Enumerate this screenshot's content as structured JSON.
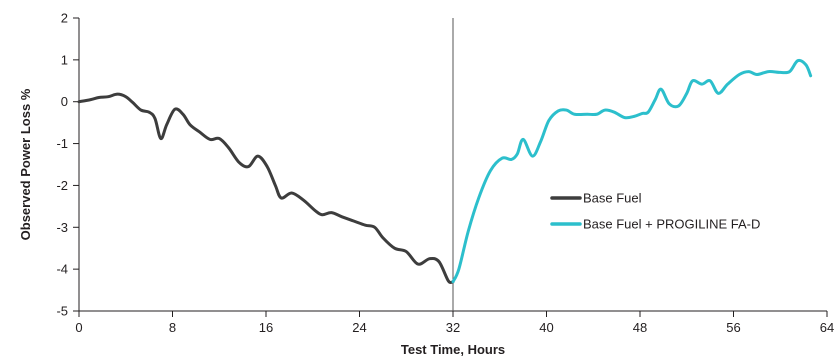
{
  "chart_data": {
    "type": "line",
    "xlabel": "Test Time, Hours",
    "ylabel": "Observed Power Loss %",
    "xlim": [
      0,
      64
    ],
    "ylim": [
      -5,
      2
    ],
    "xticks": [
      0,
      8,
      16,
      24,
      32,
      40,
      48,
      56,
      64
    ],
    "yticks": [
      -5,
      -4,
      -3,
      -2,
      -1,
      0,
      1,
      2
    ],
    "marker_x": 32,
    "grid": false,
    "legend_position": "right",
    "series": [
      {
        "name": "Base Fuel",
        "color": "#3d3d3d",
        "points": [
          [
            0,
            0
          ],
          [
            1,
            0.05
          ],
          [
            1.7,
            0.1
          ],
          [
            2.5,
            0.12
          ],
          [
            3.3,
            0.18
          ],
          [
            4,
            0.12
          ],
          [
            4.6,
            -0.02
          ],
          [
            5.3,
            -0.2
          ],
          [
            6,
            -0.25
          ],
          [
            6.5,
            -0.4
          ],
          [
            7,
            -0.88
          ],
          [
            7.5,
            -0.55
          ],
          [
            8.2,
            -0.18
          ],
          [
            8.9,
            -0.3
          ],
          [
            9.5,
            -0.55
          ],
          [
            10.3,
            -0.72
          ],
          [
            11.2,
            -0.9
          ],
          [
            12,
            -0.88
          ],
          [
            12.8,
            -1.1
          ],
          [
            13.7,
            -1.45
          ],
          [
            14.5,
            -1.55
          ],
          [
            15.3,
            -1.3
          ],
          [
            16.1,
            -1.55
          ],
          [
            16.8,
            -2.0
          ],
          [
            17.3,
            -2.3
          ],
          [
            18.2,
            -2.18
          ],
          [
            19.2,
            -2.35
          ],
          [
            20.2,
            -2.6
          ],
          [
            20.8,
            -2.7
          ],
          [
            21.6,
            -2.65
          ],
          [
            22.5,
            -2.75
          ],
          [
            23.5,
            -2.85
          ],
          [
            24.5,
            -2.95
          ],
          [
            25.3,
            -3.0
          ],
          [
            26.0,
            -3.25
          ],
          [
            27.0,
            -3.5
          ],
          [
            28.0,
            -3.58
          ],
          [
            29.0,
            -3.88
          ],
          [
            30.0,
            -3.75
          ],
          [
            30.8,
            -3.82
          ],
          [
            31.6,
            -4.28
          ],
          [
            32.0,
            -4.3
          ]
        ]
      },
      {
        "name": "Base Fuel + PROGILINE FA-D",
        "color": "#2cbfcc",
        "points": [
          [
            32.0,
            -4.3
          ],
          [
            32.5,
            -4.0
          ],
          [
            33.3,
            -3.1
          ],
          [
            34.2,
            -2.3
          ],
          [
            35.2,
            -1.65
          ],
          [
            36.2,
            -1.35
          ],
          [
            37.0,
            -1.38
          ],
          [
            37.5,
            -1.25
          ],
          [
            38.0,
            -0.9
          ],
          [
            38.8,
            -1.3
          ],
          [
            39.5,
            -0.95
          ],
          [
            40.2,
            -0.45
          ],
          [
            41.0,
            -0.22
          ],
          [
            41.7,
            -0.2
          ],
          [
            42.4,
            -0.3
          ],
          [
            43.5,
            -0.3
          ],
          [
            44.3,
            -0.3
          ],
          [
            45.0,
            -0.2
          ],
          [
            45.8,
            -0.25
          ],
          [
            46.7,
            -0.38
          ],
          [
            47.5,
            -0.35
          ],
          [
            48.2,
            -0.28
          ],
          [
            48.7,
            -0.25
          ],
          [
            49.3,
            0.05
          ],
          [
            49.8,
            0.3
          ],
          [
            50.5,
            -0.05
          ],
          [
            51.3,
            -0.1
          ],
          [
            52.0,
            0.2
          ],
          [
            52.5,
            0.5
          ],
          [
            53.3,
            0.42
          ],
          [
            54.0,
            0.5
          ],
          [
            54.7,
            0.2
          ],
          [
            55.5,
            0.42
          ],
          [
            56.5,
            0.65
          ],
          [
            57.3,
            0.72
          ],
          [
            58.0,
            0.65
          ],
          [
            59.0,
            0.72
          ],
          [
            60.0,
            0.7
          ],
          [
            60.8,
            0.72
          ],
          [
            61.5,
            0.98
          ],
          [
            62.2,
            0.88
          ],
          [
            62.6,
            0.62
          ]
        ]
      }
    ]
  }
}
